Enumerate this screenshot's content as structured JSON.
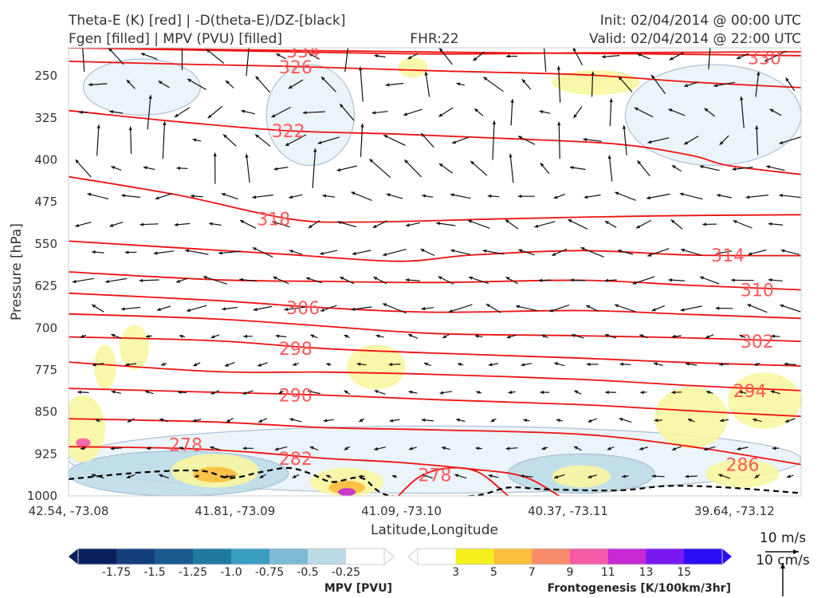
{
  "header": {
    "line1_left": "Theta-E (K) [red] | -D(theta-E)/DZ-[black]",
    "line2_left": "Fgen [filled] | MPV (PVU) [filled]",
    "fhr": "FHR:22",
    "init": "Init: 02/04/2014 @ 00:00 UTC",
    "valid": "Valid: 02/04/2014 @ 22:00 UTC"
  },
  "axes": {
    "ylabel": "Pressure [hPa]",
    "xlabel": "Latitude,Longitude"
  },
  "wind_key": {
    "horizontal": "10 m/s",
    "vertical": "10 cm/s"
  },
  "mpv_colorbar": {
    "label": "MPV [PVU]",
    "ticks": [
      "-1.75",
      "-1.5",
      "-1.25",
      "-1.0",
      "-0.75",
      "-0.5",
      "-0.25"
    ],
    "colors": [
      "#0b1f5c",
      "#133e7c",
      "#1a5a8e",
      "#1f7a9e",
      "#3a9ec0",
      "#7db9d4",
      "#bcdbe6",
      "#ffffff"
    ]
  },
  "fgen_colorbar": {
    "label": "Frontogenesis [K/100km/3hr]",
    "ticks": [
      "3",
      "5",
      "7",
      "9",
      "11",
      "13",
      "15"
    ],
    "colors": [
      "#ffffff",
      "#f5f01e",
      "#fbbd3c",
      "#f88c6c",
      "#f55aa6",
      "#c52ad5",
      "#7a18f0",
      "#2a0ff5"
    ]
  },
  "chart_data": {
    "type": "cross-section",
    "xlabel": "Latitude,Longitude",
    "ylabel": "Pressure [hPa]",
    "x_ticks": [
      "42.54, -73.08",
      "41.81, -73.09",
      "41.09, -73.10",
      "40.37, -73.11",
      "39.64, -73.12"
    ],
    "y_ticks": [
      250,
      325,
      400,
      475,
      550,
      625,
      700,
      775,
      850,
      925,
      1000
    ],
    "ylim": [
      1000,
      200
    ],
    "theta_e_contours": [
      {
        "value": 330,
        "label": "330",
        "points": [
          [
            0,
            200
          ],
          [
            0.2,
            203
          ],
          [
            0.4,
            206
          ],
          [
            0.6,
            209
          ],
          [
            0.8,
            211
          ],
          [
            1,
            214
          ]
        ]
      },
      {
        "value": 334,
        "label": "334",
        "points": [
          [
            0,
            200
          ],
          [
            0.3,
            207
          ],
          [
            0.5,
            211
          ],
          [
            0.7,
            209
          ],
          [
            1,
            207
          ]
        ]
      },
      {
        "value": 326,
        "label": "326",
        "points": [
          [
            0,
            224
          ],
          [
            0.15,
            229
          ],
          [
            0.3,
            233
          ],
          [
            0.5,
            241
          ],
          [
            0.7,
            248
          ],
          [
            0.85,
            261
          ],
          [
            1,
            271
          ]
        ]
      },
      {
        "value": 322,
        "label": "322",
        "points": [
          [
            0,
            312
          ],
          [
            0.15,
            332
          ],
          [
            0.3,
            348
          ],
          [
            0.45,
            354
          ],
          [
            0.6,
            362
          ],
          [
            0.75,
            372
          ],
          [
            0.85,
            392
          ],
          [
            0.9,
            410
          ],
          [
            1,
            426
          ]
        ]
      },
      {
        "value": 318,
        "label": "318",
        "points": [
          [
            0,
            430
          ],
          [
            0.15,
            463
          ],
          [
            0.3,
            505
          ],
          [
            0.4,
            511
          ],
          [
            0.6,
            505
          ],
          [
            0.8,
            500
          ],
          [
            1,
            498
          ]
        ]
      },
      {
        "value": 314,
        "label": "314",
        "points": [
          [
            0,
            545
          ],
          [
            0.15,
            557
          ],
          [
            0.3,
            569
          ],
          [
            0.45,
            581
          ],
          [
            0.55,
            570
          ],
          [
            0.7,
            562
          ],
          [
            0.85,
            570
          ],
          [
            1,
            571
          ]
        ]
      },
      {
        "value": 310,
        "label": "310",
        "points": [
          [
            0,
            600
          ],
          [
            0.2,
            614
          ],
          [
            0.35,
            617
          ],
          [
            0.5,
            619
          ],
          [
            0.7,
            615
          ],
          [
            0.85,
            624
          ],
          [
            1,
            632
          ]
        ]
      },
      {
        "value": 306,
        "label": "306",
        "points": [
          [
            0,
            638
          ],
          [
            0.2,
            651
          ],
          [
            0.35,
            664
          ],
          [
            0.5,
            672
          ],
          [
            0.7,
            669
          ],
          [
            0.85,
            676
          ],
          [
            1,
            683
          ]
        ]
      },
      {
        "value": 302,
        "label": "302",
        "points": [
          [
            0,
            675
          ],
          [
            0.2,
            684
          ],
          [
            0.35,
            697
          ],
          [
            0.5,
            710
          ],
          [
            0.7,
            714
          ],
          [
            0.85,
            718
          ],
          [
            1,
            724
          ]
        ]
      },
      {
        "value": 298,
        "label": "298",
        "points": [
          [
            0,
            716
          ],
          [
            0.2,
            723
          ],
          [
            0.35,
            737
          ],
          [
            0.5,
            745
          ],
          [
            0.7,
            754
          ],
          [
            0.85,
            762
          ],
          [
            1,
            768
          ]
        ]
      },
      {
        "value": 294,
        "label": "294",
        "points": [
          [
            0,
            761
          ],
          [
            0.2,
            778
          ],
          [
            0.35,
            779
          ],
          [
            0.5,
            783
          ],
          [
            0.7,
            792
          ],
          [
            0.85,
            803
          ],
          [
            1,
            812
          ]
        ]
      },
      {
        "value": 290,
        "label": "290",
        "points": [
          [
            0,
            808
          ],
          [
            0.2,
            815
          ],
          [
            0.35,
            820
          ],
          [
            0.5,
            828
          ],
          [
            0.7,
            837
          ],
          [
            0.85,
            848
          ],
          [
            1,
            858
          ]
        ]
      },
      {
        "value": 286,
        "label": "286",
        "points": [
          [
            0,
            862
          ],
          [
            0.2,
            868
          ],
          [
            0.35,
            878
          ],
          [
            0.5,
            882
          ],
          [
            0.7,
            890
          ],
          [
            0.85,
            912
          ],
          [
            1,
            944
          ]
        ]
      },
      {
        "value": 282,
        "label": "282",
        "points": [
          [
            0,
            912
          ],
          [
            0.15,
            915
          ],
          [
            0.25,
            922
          ],
          [
            0.35,
            933
          ],
          [
            0.45,
            940
          ],
          [
            0.55,
            952
          ],
          [
            0.62,
            965
          ],
          [
            0.67,
            1000
          ]
        ]
      },
      {
        "value": 278,
        "label": "278",
        "points": [
          [
            0.45,
            1000
          ],
          [
            0.48,
            965
          ],
          [
            0.52,
            950
          ],
          [
            0.56,
            958
          ],
          [
            0.6,
            1000
          ]
        ]
      }
    ],
    "contour_label_positions": [
      {
        "label": "334",
        "x": 0.32,
        "p": 206
      },
      {
        "label": "326",
        "x": 0.31,
        "p": 234
      },
      {
        "label": "330",
        "x": 0.95,
        "p": 218
      },
      {
        "label": "322",
        "x": 0.3,
        "p": 348
      },
      {
        "label": "318",
        "x": 0.28,
        "p": 505
      },
      {
        "label": "314",
        "x": 0.9,
        "p": 570
      },
      {
        "label": "310",
        "x": 0.94,
        "p": 632
      },
      {
        "label": "306",
        "x": 0.32,
        "p": 664
      },
      {
        "label": "302",
        "x": 0.94,
        "p": 724
      },
      {
        "label": "298",
        "x": 0.31,
        "p": 737
      },
      {
        "label": "294",
        "x": 0.93,
        "p": 812
      },
      {
        "label": "290",
        "x": 0.31,
        "p": 820
      },
      {
        "label": "286",
        "x": 0.92,
        "p": 944
      },
      {
        "label": "282",
        "x": 0.31,
        "p": 933
      },
      {
        "label": "278",
        "x": 0.16,
        "p": 908
      },
      {
        "label": "278",
        "x": 0.5,
        "p": 962
      }
    ],
    "stability_contour_black_dashed": [
      [
        0,
        970
      ],
      [
        0.1,
        958
      ],
      [
        0.18,
        955
      ],
      [
        0.22,
        968
      ],
      [
        0.26,
        958
      ],
      [
        0.3,
        950
      ],
      [
        0.33,
        960
      ],
      [
        0.36,
        975
      ],
      [
        0.4,
        968
      ],
      [
        0.44,
        1000
      ],
      [
        0.55,
        1000
      ],
      [
        0.6,
        985
      ],
      [
        0.65,
        988
      ],
      [
        0.75,
        990
      ],
      [
        0.82,
        982
      ],
      [
        0.9,
        985
      ],
      [
        1,
        995
      ]
    ],
    "fgen_regions": [
      {
        "x": 0.47,
        "p": 235,
        "rx": 0.02,
        "rp": 18,
        "level": 3
      },
      {
        "x": 0.72,
        "p": 262,
        "rx": 0.06,
        "rp": 22,
        "level": 3
      },
      {
        "x": 0.42,
        "p": 770,
        "rx": 0.04,
        "rp": 40,
        "level": 3
      },
      {
        "x": 0.09,
        "p": 735,
        "rx": 0.02,
        "rp": 40,
        "level": 3
      },
      {
        "x": 0.05,
        "p": 770,
        "rx": 0.015,
        "rp": 40,
        "level": 3
      },
      {
        "x": 0.85,
        "p": 860,
        "rx": 0.05,
        "rp": 55,
        "level": 3
      },
      {
        "x": 0.95,
        "p": 830,
        "rx": 0.05,
        "rp": 50,
        "level": 3
      },
      {
        "x": 0.02,
        "p": 880,
        "rx": 0.03,
        "rp": 60,
        "level": 3
      },
      {
        "x": 0.2,
        "p": 955,
        "rx": 0.06,
        "rp": 30,
        "level": 3
      },
      {
        "x": 0.2,
        "p": 962,
        "rx": 0.03,
        "rp": 14,
        "level": 5
      },
      {
        "x": 0.38,
        "p": 975,
        "rx": 0.05,
        "rp": 25,
        "level": 3
      },
      {
        "x": 0.38,
        "p": 985,
        "rx": 0.025,
        "rp": 12,
        "level": 5
      },
      {
        "x": 0.38,
        "p": 993,
        "rx": 0.012,
        "rp": 7,
        "level": 11
      },
      {
        "x": 0.7,
        "p": 965,
        "rx": 0.04,
        "rp": 20,
        "level": 3
      },
      {
        "x": 0.02,
        "p": 905,
        "rx": 0.01,
        "rp": 8,
        "level": 9
      },
      {
        "x": 0.92,
        "p": 960,
        "rx": 0.05,
        "rp": 25,
        "level": 3
      }
    ],
    "mpv_regions": [
      {
        "x": 0.33,
        "p": 320,
        "rx": 0.06,
        "rp": 90,
        "level": -0.25
      },
      {
        "x": 0.88,
        "p": 320,
        "rx": 0.12,
        "rp": 90,
        "level": -0.25
      },
      {
        "x": 0.1,
        "p": 270,
        "rx": 0.08,
        "rp": 50,
        "level": -0.25
      },
      {
        "x": 0.5,
        "p": 935,
        "rx": 0.5,
        "rp": 60,
        "level": -0.25
      },
      {
        "x": 0.15,
        "p": 960,
        "rx": 0.15,
        "rp": 40,
        "level": -0.5
      },
      {
        "x": 0.7,
        "p": 960,
        "rx": 0.1,
        "rp": 35,
        "level": -0.5
      }
    ],
    "wind_key": {
      "horizontal_ms": 10,
      "vertical_cms": 10
    }
  }
}
